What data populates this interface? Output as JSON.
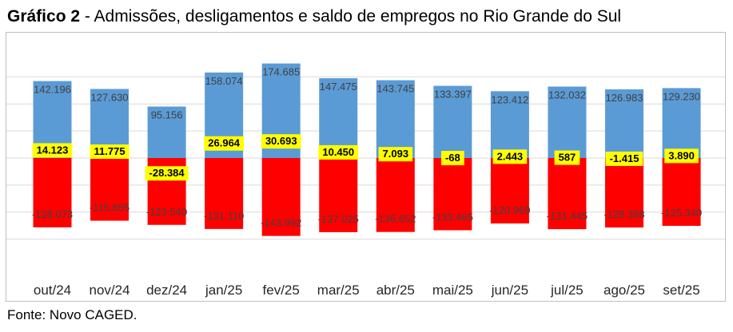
{
  "title": {
    "bold": "Gráfico 2",
    "rest": " - Admissões, desligamentos e saldo de empregos no Rio Grande do Sul"
  },
  "source": "Fonte: Novo CAGED.",
  "chart_data": {
    "type": "bar",
    "title": "Gráfico 2 - Admissões, desligamentos e saldo de empregos no Rio Grande do Sul",
    "xlabel": "",
    "ylabel": "",
    "ylim": [
      -200000,
      200000
    ],
    "gridlines": true,
    "categories": [
      "out/24",
      "nov/24",
      "dez/24",
      "jan/25",
      "fev/25",
      "mar/25",
      "abr/25",
      "mai/25",
      "jun/25",
      "jul/25",
      "ago/25",
      "set/25"
    ],
    "series": [
      {
        "name": "Admissões",
        "color": "#5b9bd5",
        "values": [
          142196,
          127630,
          95156,
          158074,
          174685,
          147475,
          143745,
          133397,
          123412,
          132032,
          126983,
          129230
        ],
        "labels": [
          "142.196",
          "127.630",
          "95.156",
          "158.074",
          "174.685",
          "147.475",
          "143.745",
          "133.397",
          "123.412",
          "132.032",
          "126.983",
          "129.230"
        ]
      },
      {
        "name": "Desligamentos",
        "color": "#ff0000",
        "values": [
          -128073,
          -115855,
          -123540,
          -131110,
          -143992,
          -137025,
          -136652,
          -133465,
          -120969,
          -131445,
          -128398,
          -125340
        ],
        "labels": [
          "-128.073",
          "-115.855",
          "-123.540",
          "-131.110",
          "-143.992",
          "-137.025",
          "-136.652",
          "-133.465",
          "-120.969",
          "-131.445",
          "-128.398",
          "-125.340"
        ]
      },
      {
        "name": "Saldo",
        "color": "#ffff00",
        "values": [
          14123,
          11775,
          -28384,
          26964,
          30693,
          10450,
          7093,
          -68,
          2443,
          587,
          -1415,
          3890
        ],
        "labels": [
          "14.123",
          "11.775",
          "-28.384",
          "26.964",
          "30.693",
          "10.450",
          "7.093",
          "-68",
          "2.443",
          "587",
          "-1.415",
          "3.890"
        ]
      }
    ]
  }
}
